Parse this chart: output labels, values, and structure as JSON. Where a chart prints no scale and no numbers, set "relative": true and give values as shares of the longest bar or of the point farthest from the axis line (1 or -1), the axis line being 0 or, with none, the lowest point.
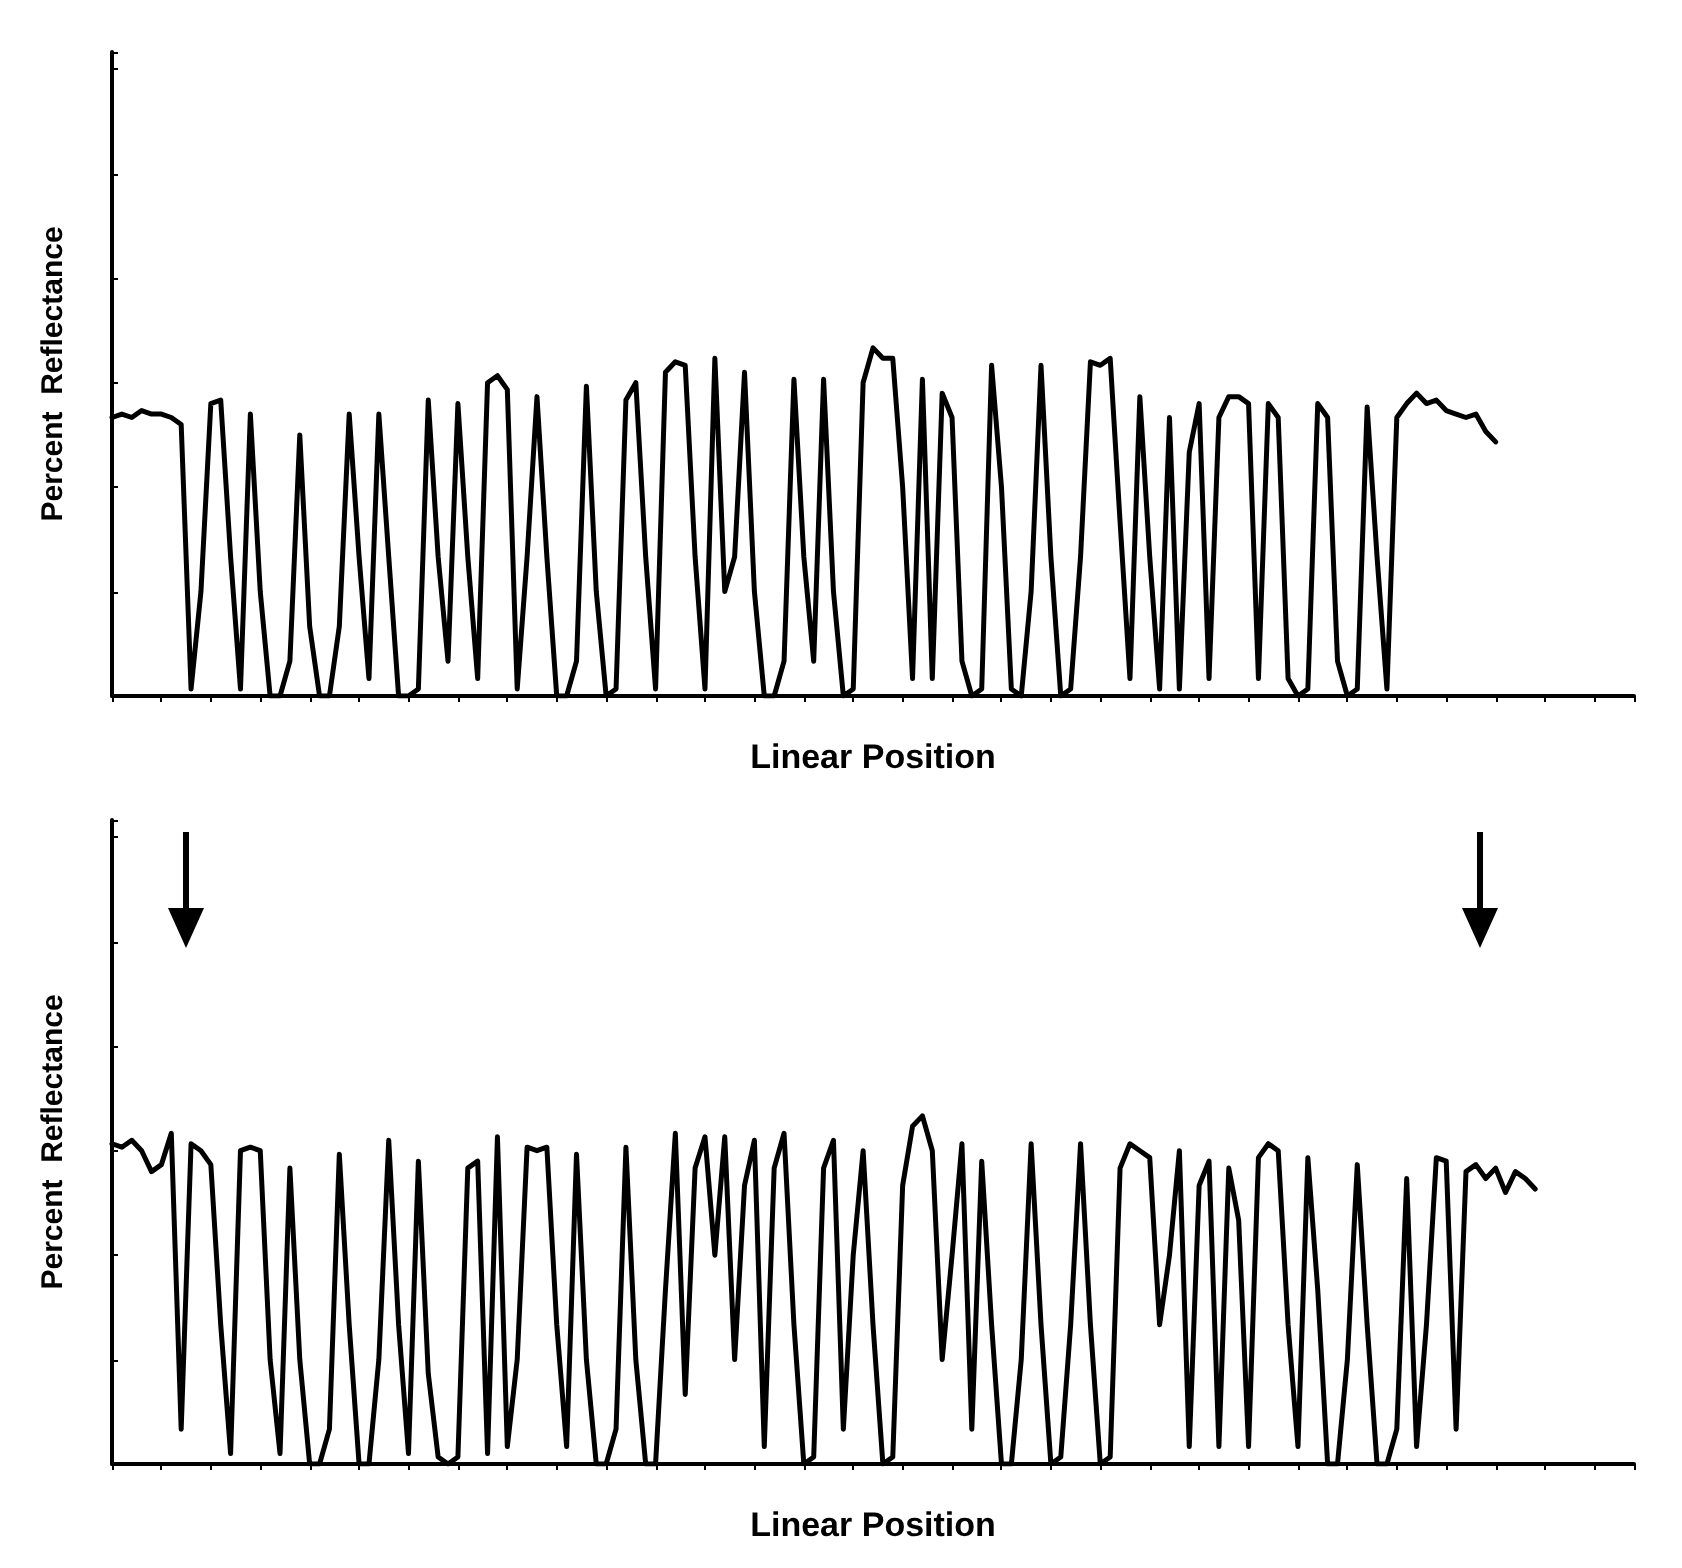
{
  "chart_data": [
    {
      "type": "line",
      "ylabel": "Percent  Reflectance",
      "xlabel": "Linear Position",
      "relative": true,
      "line_style": "solid",
      "categories": [
        null,
        null,
        null,
        null,
        null,
        null,
        null,
        null,
        null,
        null,
        null,
        null,
        null,
        null,
        null,
        null,
        null,
        null,
        null,
        null,
        null,
        null,
        null,
        null,
        null,
        null,
        null,
        null,
        null,
        null,
        null,
        null,
        null,
        null,
        null,
        null,
        null,
        null,
        null,
        null,
        null,
        null,
        null,
        null,
        null,
        null,
        null,
        null,
        null,
        null,
        null,
        null,
        null,
        null,
        null,
        null,
        null,
        null,
        null,
        null,
        null,
        null,
        null,
        null,
        null,
        null,
        null,
        null,
        null,
        null,
        null,
        null,
        null,
        null,
        null,
        null,
        null,
        null,
        null,
        null,
        null,
        null,
        null,
        null,
        null,
        null,
        null,
        null,
        null,
        null,
        null,
        null,
        null,
        null,
        null,
        null,
        null,
        null,
        null,
        null,
        null,
        null,
        null,
        null,
        null,
        null,
        null,
        null,
        null,
        null,
        null,
        null,
        null,
        null,
        null,
        null,
        null,
        null,
        null,
        null,
        null,
        null,
        null,
        null,
        null,
        null,
        null,
        null,
        null,
        null,
        null,
        null,
        null,
        null,
        null,
        null,
        null,
        null,
        null,
        null,
        null,
        null,
        null,
        null,
        null,
        null,
        null,
        null,
        null,
        null,
        null,
        null,
        null,
        null,
        null
      ],
      "series": [
        {
          "color": "#000000",
          "values": [
            0.8,
            0.81,
            0.8,
            0.82,
            0.81,
            0.81,
            0.8,
            0.78,
            0.02,
            0.3,
            0.84,
            0.85,
            0.4,
            0.02,
            0.81,
            0.3,
            0.0,
            0.0,
            0.1,
            0.75,
            0.2,
            0.0,
            0.0,
            0.2,
            0.81,
            0.4,
            0.05,
            0.81,
            0.4,
            0.0,
            0.0,
            0.02,
            0.85,
            0.4,
            0.1,
            0.84,
            0.4,
            0.05,
            0.9,
            0.92,
            0.88,
            0.02,
            0.4,
            0.86,
            0.4,
            0.0,
            0.0,
            0.1,
            0.89,
            0.3,
            0.0,
            0.02,
            0.85,
            0.9,
            0.4,
            0.02,
            0.93,
            0.96,
            0.95,
            0.4,
            0.02,
            0.97,
            0.3,
            0.4,
            0.93,
            0.3,
            0.0,
            0.0,
            0.1,
            0.91,
            0.4,
            0.1,
            0.91,
            0.3,
            0.0,
            0.02,
            0.9,
            1.0,
            0.97,
            0.97,
            0.6,
            0.05,
            0.91,
            0.05,
            0.87,
            0.8,
            0.1,
            0.0,
            0.02,
            0.95,
            0.6,
            0.02,
            0.0,
            0.3,
            0.95,
            0.4,
            0.0,
            0.02,
            0.4,
            0.96,
            0.95,
            0.97,
            0.5,
            0.05,
            0.86,
            0.4,
            0.02,
            0.8,
            0.02,
            0.7,
            0.84,
            0.05,
            0.8,
            0.86,
            0.86,
            0.84,
            0.05,
            0.84,
            0.8,
            0.05,
            0.0,
            0.02,
            0.84,
            0.8,
            0.1,
            0.0,
            0.02,
            0.83,
            0.4,
            0.02,
            0.8,
            0.84,
            0.87,
            0.84,
            0.85,
            0.82,
            0.81,
            0.8,
            0.81,
            0.76,
            0.73,
            null,
            null,
            null,
            null,
            null,
            null,
            null,
            null,
            null,
            null,
            null,
            null,
            null,
            null
          ]
        }
      ]
    },
    {
      "type": "line",
      "ylabel": "Percent  Reflectance",
      "xlabel": "Linear Position",
      "relative": true,
      "line_style": "solid",
      "categories": [
        null,
        null,
        null,
        null,
        null,
        null,
        null,
        null,
        null,
        null,
        null,
        null,
        null,
        null,
        null,
        null,
        null,
        null,
        null,
        null,
        null,
        null,
        null,
        null,
        null,
        null,
        null,
        null,
        null,
        null,
        null,
        null,
        null,
        null,
        null,
        null,
        null,
        null,
        null,
        null,
        null,
        null,
        null,
        null,
        null,
        null,
        null,
        null,
        null,
        null,
        null,
        null,
        null,
        null,
        null,
        null,
        null,
        null,
        null,
        null,
        null,
        null,
        null,
        null,
        null,
        null,
        null,
        null,
        null,
        null,
        null,
        null,
        null,
        null,
        null,
        null,
        null,
        null,
        null,
        null,
        null,
        null,
        null,
        null,
        null,
        null,
        null,
        null,
        null,
        null,
        null,
        null,
        null,
        null,
        null,
        null,
        null,
        null,
        null,
        null,
        null,
        null,
        null,
        null,
        null,
        null,
        null,
        null,
        null,
        null,
        null,
        null,
        null,
        null,
        null,
        null,
        null,
        null,
        null,
        null,
        null,
        null,
        null,
        null,
        null,
        null,
        null,
        null,
        null,
        null,
        null,
        null,
        null,
        null,
        null,
        null,
        null,
        null,
        null,
        null,
        null,
        null,
        null,
        null,
        null,
        null,
        null,
        null,
        null,
        null,
        null,
        null,
        null,
        null,
        null
      ],
      "series": [
        {
          "color": "#000000",
          "values": [
            0.92,
            0.91,
            0.93,
            0.9,
            0.84,
            0.86,
            0.95,
            0.1,
            0.92,
            0.9,
            0.86,
            0.4,
            0.03,
            0.9,
            0.91,
            0.9,
            0.3,
            0.03,
            0.85,
            0.3,
            0.0,
            0.0,
            0.1,
            0.89,
            0.4,
            0.0,
            0.0,
            0.3,
            0.93,
            0.4,
            0.03,
            0.87,
            0.26,
            0.02,
            0.0,
            0.02,
            0.85,
            0.87,
            0.03,
            0.94,
            0.05,
            0.3,
            0.91,
            0.9,
            0.91,
            0.4,
            0.05,
            0.89,
            0.3,
            0.0,
            0.0,
            0.1,
            0.91,
            0.3,
            0.0,
            0.0,
            0.5,
            0.95,
            0.2,
            0.85,
            0.94,
            0.6,
            0.94,
            0.3,
            0.8,
            0.93,
            0.05,
            0.85,
            0.95,
            0.4,
            0.0,
            0.02,
            0.85,
            0.93,
            0.1,
            0.6,
            0.9,
            0.4,
            0.0,
            0.02,
            0.8,
            0.97,
            1.0,
            0.9,
            0.3,
            0.6,
            0.92,
            0.1,
            0.87,
            0.4,
            0.0,
            0.0,
            0.3,
            0.92,
            0.4,
            0.0,
            0.02,
            0.4,
            0.92,
            0.4,
            0.0,
            0.02,
            0.85,
            0.92,
            0.9,
            0.88,
            0.4,
            0.6,
            0.9,
            0.05,
            0.8,
            0.87,
            0.05,
            0.85,
            0.7,
            0.05,
            0.88,
            0.92,
            0.9,
            0.4,
            0.05,
            0.88,
            0.5,
            0.0,
            0.0,
            0.3,
            0.86,
            0.4,
            0.0,
            0.0,
            0.1,
            0.82,
            0.05,
            0.4,
            0.88,
            0.87,
            0.1,
            0.84,
            0.86,
            0.82,
            0.85,
            0.78,
            0.84,
            0.82,
            0.79,
            null,
            null,
            null,
            null,
            null,
            null,
            null,
            null,
            null,
            null
          ]
        }
      ]
    }
  ]
}
